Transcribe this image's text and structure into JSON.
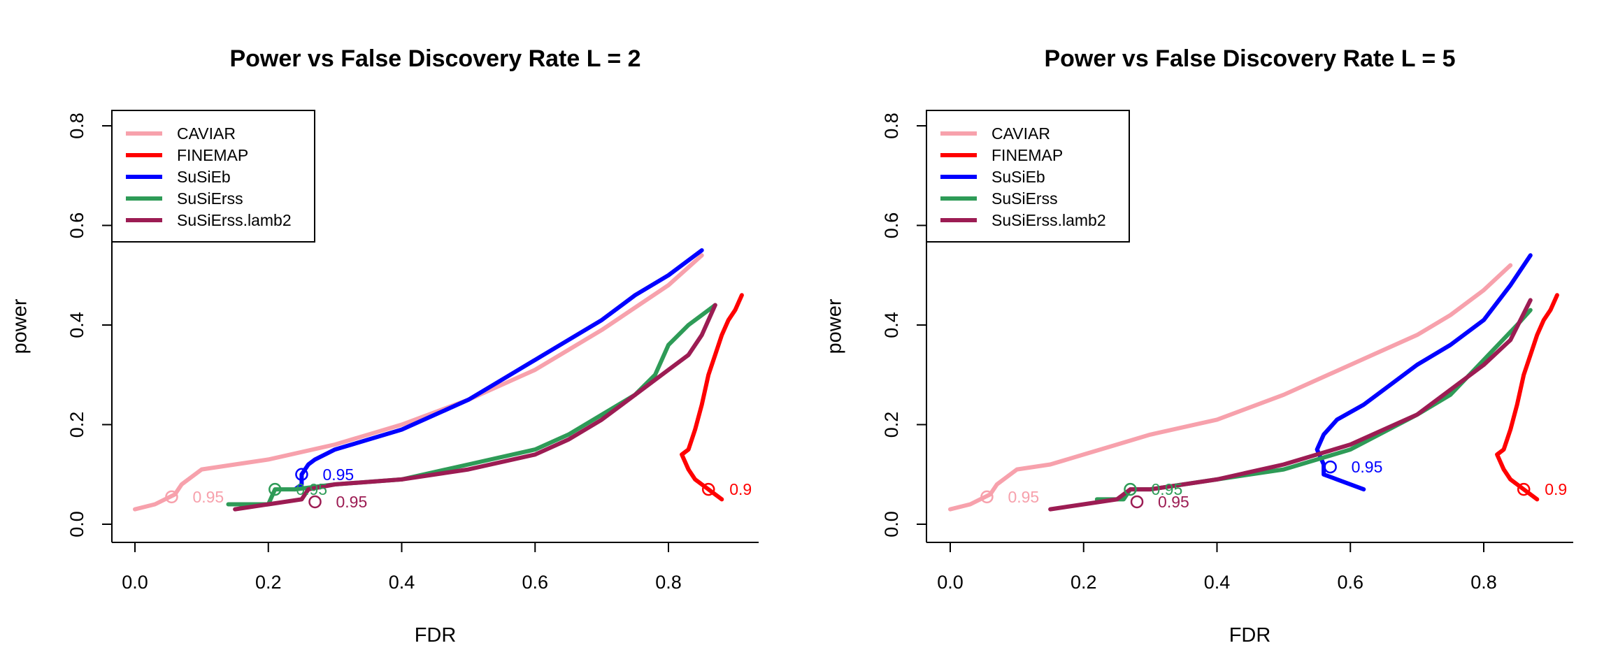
{
  "chart_data": [
    {
      "type": "line",
      "title": "Power vs False Discovery Rate L = 2",
      "xlabel": "FDR",
      "ylabel": "power",
      "xlim": [
        0,
        0.9
      ],
      "ylim": [
        0,
        0.8
      ],
      "xticks": [
        0.0,
        0.2,
        0.4,
        0.6,
        0.8
      ],
      "xtick_labels": [
        "0.0",
        "0.2",
        "0.4",
        "0.6",
        "0.8"
      ],
      "yticks": [
        0.0,
        0.2,
        0.4,
        0.6,
        0.8
      ],
      "ytick_labels": [
        "0.0",
        "0.2",
        "0.4",
        "0.6",
        "0.8"
      ],
      "legend": {
        "position": "top-left",
        "boxed": true
      },
      "series": [
        {
          "name": "CAVIAR",
          "color": "#f7a1ac",
          "x": [
            0.0,
            0.03,
            0.06,
            0.07,
            0.08,
            0.1,
            0.15,
            0.2,
            0.3,
            0.4,
            0.5,
            0.6,
            0.7,
            0.8,
            0.85
          ],
          "y": [
            0.03,
            0.04,
            0.06,
            0.08,
            0.09,
            0.11,
            0.12,
            0.13,
            0.16,
            0.2,
            0.25,
            0.31,
            0.39,
            0.48,
            0.54
          ],
          "marker": {
            "x": 0.055,
            "y": 0.055,
            "label": "0.95"
          }
        },
        {
          "name": "FINEMAP",
          "color": "#ff0000",
          "x": [
            0.88,
            0.86,
            0.84,
            0.83,
            0.82,
            0.83,
            0.84,
            0.85,
            0.86,
            0.87,
            0.88,
            0.89,
            0.9,
            0.91
          ],
          "y": [
            0.05,
            0.07,
            0.09,
            0.11,
            0.14,
            0.15,
            0.19,
            0.24,
            0.3,
            0.34,
            0.38,
            0.41,
            0.43,
            0.46
          ],
          "marker": {
            "x": 0.86,
            "y": 0.07,
            "label": "0.9"
          }
        },
        {
          "name": "SuSiEb",
          "color": "#0000ff",
          "x": [
            0.24,
            0.25,
            0.25,
            0.26,
            0.27,
            0.3,
            0.35,
            0.4,
            0.45,
            0.5,
            0.55,
            0.6,
            0.65,
            0.7,
            0.75,
            0.8,
            0.85
          ],
          "y": [
            0.07,
            0.08,
            0.1,
            0.12,
            0.13,
            0.15,
            0.17,
            0.19,
            0.22,
            0.25,
            0.29,
            0.33,
            0.37,
            0.41,
            0.46,
            0.5,
            0.55
          ],
          "marker": {
            "x": 0.25,
            "y": 0.1,
            "label": "0.95"
          }
        },
        {
          "name": "SuSiErss",
          "color": "#2e9b57",
          "x": [
            0.14,
            0.2,
            0.21,
            0.24,
            0.3,
            0.4,
            0.5,
            0.6,
            0.65,
            0.7,
            0.75,
            0.78,
            0.8,
            0.83,
            0.85,
            0.87
          ],
          "y": [
            0.04,
            0.04,
            0.07,
            0.07,
            0.08,
            0.09,
            0.12,
            0.15,
            0.18,
            0.22,
            0.26,
            0.3,
            0.36,
            0.4,
            0.42,
            0.44
          ],
          "marker": {
            "x": 0.21,
            "y": 0.07,
            "label": "0.95"
          }
        },
        {
          "name": "SuSiErss.lamb2",
          "color": "#9c1c53",
          "x": [
            0.15,
            0.2,
            0.25,
            0.26,
            0.3,
            0.4,
            0.5,
            0.6,
            0.65,
            0.7,
            0.75,
            0.8,
            0.83,
            0.85,
            0.87
          ],
          "y": [
            0.03,
            0.04,
            0.05,
            0.07,
            0.08,
            0.09,
            0.11,
            0.14,
            0.17,
            0.21,
            0.26,
            0.31,
            0.34,
            0.38,
            0.44
          ],
          "marker": {
            "x": 0.27,
            "y": 0.045,
            "label": "0.95"
          }
        }
      ]
    },
    {
      "type": "line",
      "title": "Power vs False Discovery Rate L = 5",
      "xlabel": "FDR",
      "ylabel": "power",
      "xlim": [
        0,
        0.9
      ],
      "ylim": [
        0,
        0.8
      ],
      "xticks": [
        0.0,
        0.2,
        0.4,
        0.6,
        0.8
      ],
      "xtick_labels": [
        "0.0",
        "0.2",
        "0.4",
        "0.6",
        "0.8"
      ],
      "yticks": [
        0.0,
        0.2,
        0.4,
        0.6,
        0.8
      ],
      "ytick_labels": [
        "0.0",
        "0.2",
        "0.4",
        "0.6",
        "0.8"
      ],
      "legend": {
        "position": "top-left",
        "boxed": true
      },
      "series": [
        {
          "name": "CAVIAR",
          "color": "#f7a1ac",
          "x": [
            0.0,
            0.03,
            0.06,
            0.07,
            0.08,
            0.1,
            0.15,
            0.2,
            0.3,
            0.4,
            0.5,
            0.55,
            0.6,
            0.65,
            0.7,
            0.75,
            0.8,
            0.84
          ],
          "y": [
            0.03,
            0.04,
            0.06,
            0.08,
            0.09,
            0.11,
            0.12,
            0.14,
            0.18,
            0.21,
            0.26,
            0.29,
            0.32,
            0.35,
            0.38,
            0.42,
            0.47,
            0.52
          ],
          "marker": {
            "x": 0.055,
            "y": 0.055,
            "label": "0.95"
          }
        },
        {
          "name": "FINEMAP",
          "color": "#ff0000",
          "x": [
            0.88,
            0.86,
            0.84,
            0.83,
            0.82,
            0.83,
            0.84,
            0.85,
            0.86,
            0.87,
            0.88,
            0.89,
            0.9,
            0.91
          ],
          "y": [
            0.05,
            0.07,
            0.09,
            0.11,
            0.14,
            0.15,
            0.19,
            0.24,
            0.3,
            0.34,
            0.38,
            0.41,
            0.43,
            0.46
          ],
          "marker": {
            "x": 0.86,
            "y": 0.07,
            "label": "0.9"
          }
        },
        {
          "name": "SuSiEb",
          "color": "#0000ff",
          "x": [
            0.62,
            0.58,
            0.56,
            0.56,
            0.55,
            0.56,
            0.58,
            0.62,
            0.66,
            0.7,
            0.75,
            0.8,
            0.84,
            0.87
          ],
          "y": [
            0.07,
            0.09,
            0.1,
            0.12,
            0.15,
            0.18,
            0.21,
            0.24,
            0.28,
            0.32,
            0.36,
            0.41,
            0.48,
            0.54
          ],
          "marker": {
            "x": 0.57,
            "y": 0.115,
            "label": "0.95"
          }
        },
        {
          "name": "SuSiErss",
          "color": "#2e9b57",
          "x": [
            0.22,
            0.26,
            0.27,
            0.3,
            0.4,
            0.5,
            0.55,
            0.6,
            0.7,
            0.75,
            0.8,
            0.85,
            0.87
          ],
          "y": [
            0.05,
            0.05,
            0.07,
            0.07,
            0.09,
            0.11,
            0.13,
            0.15,
            0.22,
            0.26,
            0.33,
            0.4,
            0.43
          ],
          "marker": {
            "x": 0.27,
            "y": 0.07,
            "label": "0.95"
          }
        },
        {
          "name": "SuSiErss.lamb2",
          "color": "#9c1c53",
          "x": [
            0.15,
            0.2,
            0.25,
            0.27,
            0.3,
            0.4,
            0.5,
            0.55,
            0.6,
            0.65,
            0.7,
            0.75,
            0.8,
            0.84,
            0.87
          ],
          "y": [
            0.03,
            0.04,
            0.05,
            0.07,
            0.07,
            0.09,
            0.12,
            0.14,
            0.16,
            0.19,
            0.22,
            0.27,
            0.32,
            0.37,
            0.45
          ],
          "marker": {
            "x": 0.28,
            "y": 0.045,
            "label": "0.95"
          }
        }
      ]
    }
  ]
}
